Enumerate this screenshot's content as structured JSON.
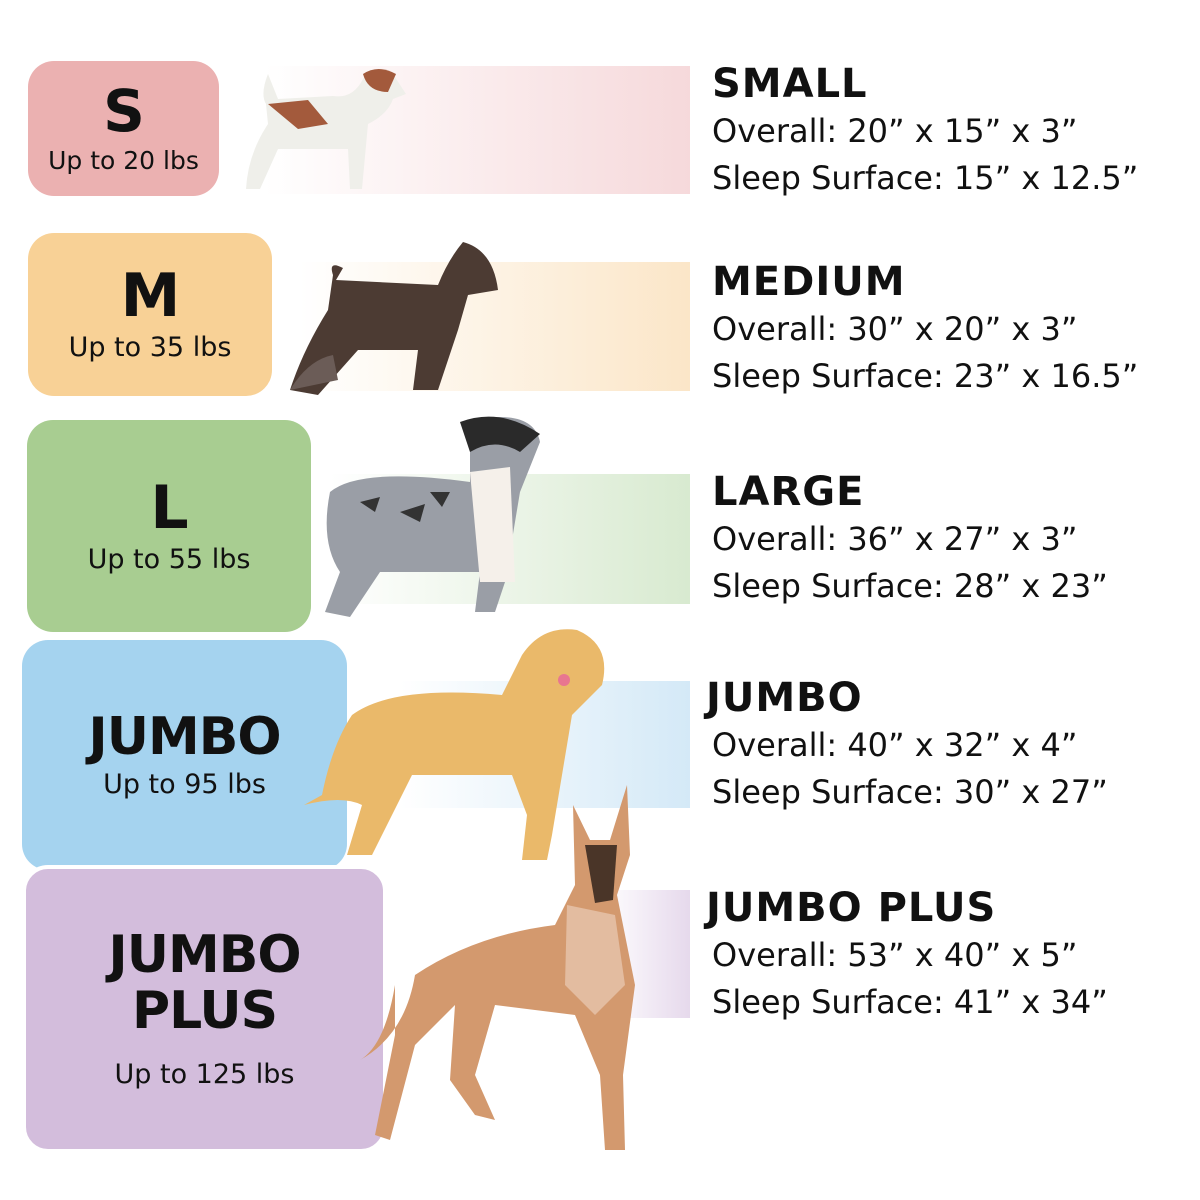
{
  "sizes": [
    {
      "code": "S",
      "weight": "Up to 20 lbs",
      "name": "SMALL",
      "overall": "Overall: 20” x 15” x 3”",
      "sleep": "Sleep Surface: 15” x 12.5”",
      "color": "#ebb1b1"
    },
    {
      "code": "M",
      "weight": "Up to 35 lbs",
      "name": "MEDIUM",
      "overall": "Overall: 30” x 20” x 3”",
      "sleep": "Sleep Surface: 23” x 16.5”",
      "color": "#f8d196"
    },
    {
      "code": "L",
      "weight": "Up to 55 lbs",
      "name": "LARGE",
      "overall": "Overall: 36” x 27” x 3”",
      "sleep": "Sleep Surface: 28” x 23”",
      "color": "#a8cd91"
    },
    {
      "code": "JUMBO",
      "weight": "Up to 95 lbs",
      "name": "JUMBO",
      "overall": "Overall: 40” x 32” x 4”",
      "sleep": "Sleep Surface: 30” x 27”",
      "color": "#a5d3ef"
    },
    {
      "code_line1": "JUMBO",
      "code_line2": "PLUS",
      "weight": "Up to 125 lbs",
      "name": "JUMBO PLUS",
      "overall": "Overall: 53” x 40” x 5”",
      "sleep": "Sleep Surface: 41” x 34”",
      "color": "#d3bddc"
    }
  ]
}
